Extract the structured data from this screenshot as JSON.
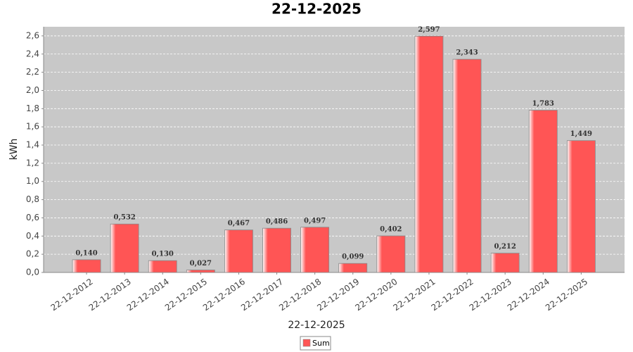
{
  "chart_data": {
    "type": "bar",
    "title": "22-12-2025",
    "x_label": "22-12-2025",
    "y_label": "kWh",
    "categories": [
      "22-12-2012",
      "22-12-2013",
      "22-12-2014",
      "22-12-2015",
      "22-12-2016",
      "22-12-2017",
      "22-12-2018",
      "22-12-2019",
      "22-12-2020",
      "22-12-2021",
      "22-12-2022",
      "22-12-2023",
      "22-12-2024",
      "22-12-2025"
    ],
    "series": [
      {
        "name": "Sum",
        "color": "#ff5555",
        "values": [
          0.14,
          0.532,
          0.13,
          0.027,
          0.467,
          0.486,
          0.497,
          0.099,
          0.402,
          2.597,
          2.343,
          0.212,
          1.783,
          1.449
        ],
        "value_labels": [
          "0,140",
          "0,532",
          "0,130",
          "0,027",
          "0,467",
          "0,486",
          "0,497",
          "0,099",
          "0,402",
          "2,597",
          "2,343",
          "0,212",
          "1,783",
          "1,449"
        ]
      }
    ],
    "ylim": [
      0,
      2.7
    ],
    "yticks": [
      {
        "value": 0,
        "label": "0,0"
      },
      {
        "value": 0.2,
        "label": "0,2"
      },
      {
        "value": 0.4,
        "label": "0,4"
      },
      {
        "value": 0.6,
        "label": "0,6"
      },
      {
        "value": 0.8,
        "label": "0,8"
      },
      {
        "value": 1.0,
        "label": "1,0"
      },
      {
        "value": 1.2,
        "label": "1,2"
      },
      {
        "value": 1.4,
        "label": "1,4"
      },
      {
        "value": 1.6,
        "label": "1,6"
      },
      {
        "value": 1.8,
        "label": "1,8"
      },
      {
        "value": 2.0,
        "label": "2,0"
      },
      {
        "value": 2.2,
        "label": "2,2"
      },
      {
        "value": 2.4,
        "label": "2,4"
      },
      {
        "value": 2.6,
        "label": "2,6"
      }
    ],
    "grid": true
  }
}
